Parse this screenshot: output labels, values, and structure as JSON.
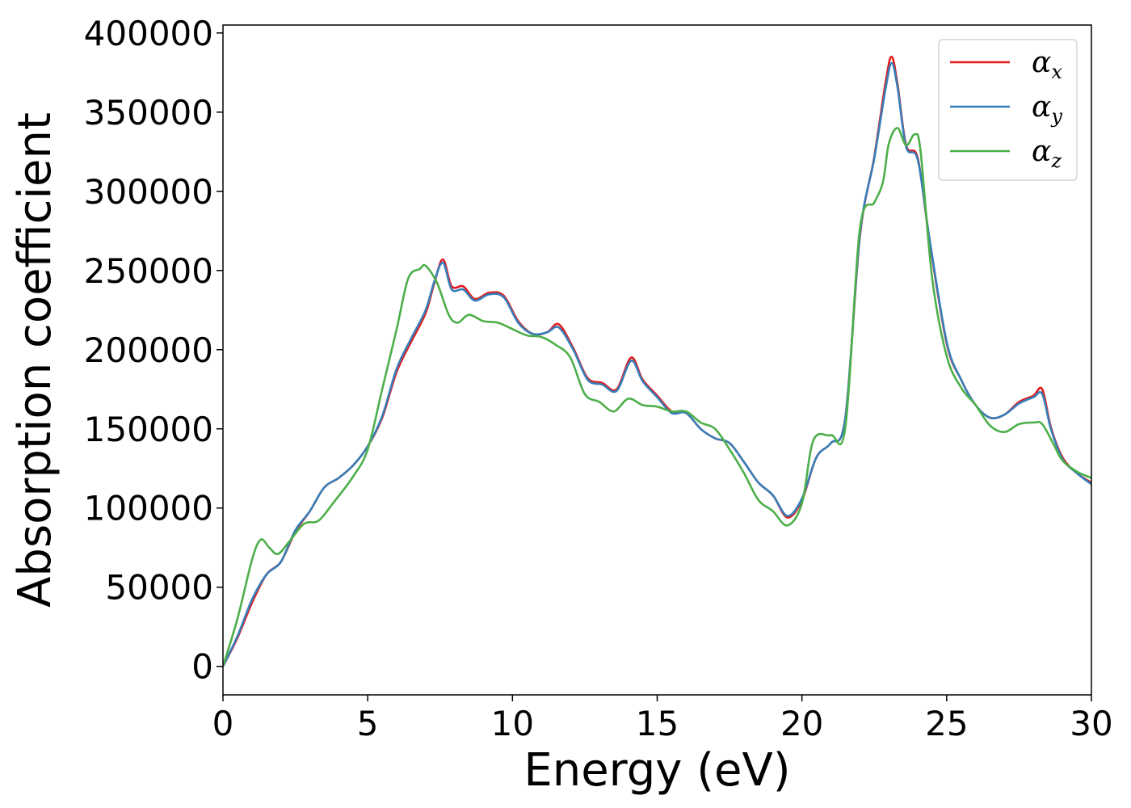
{
  "chart_data": {
    "type": "line",
    "title": "",
    "xlabel": "Energy (eV)",
    "ylabel": "Absorption coefficient",
    "xlim": [
      0,
      30
    ],
    "ylim": [
      -18000,
      405000
    ],
    "xticks": [
      0,
      5,
      10,
      15,
      20,
      25,
      30
    ],
    "xtick_labels": [
      "0",
      "5",
      "10",
      "15",
      "20",
      "25",
      "30"
    ],
    "yticks": [
      0,
      50000,
      100000,
      150000,
      200000,
      250000,
      300000,
      350000,
      400000
    ],
    "ytick_labels": [
      "0",
      "50000",
      "100000",
      "150000",
      "200000",
      "250000",
      "300000",
      "350000",
      "400000"
    ],
    "grid": false,
    "legend_position": "top-right",
    "series": [
      {
        "name": "α_x",
        "legend_base": "α",
        "legend_sub": "x",
        "color": "#e41a1c",
        "points": [
          [
            0,
            0
          ],
          [
            0.5,
            18000
          ],
          [
            1,
            40000
          ],
          [
            1.5,
            58000
          ],
          [
            2,
            66000
          ],
          [
            2.5,
            85000
          ],
          [
            3,
            98000
          ],
          [
            3.5,
            113000
          ],
          [
            4,
            119000
          ],
          [
            4.5,
            127000
          ],
          [
            5,
            139000
          ],
          [
            5.5,
            157000
          ],
          [
            6,
            186000
          ],
          [
            6.5,
            205000
          ],
          [
            7,
            223000
          ],
          [
            7.3,
            242000
          ],
          [
            7.6,
            257000
          ],
          [
            7.9,
            240000
          ],
          [
            8.3,
            240000
          ],
          [
            8.7,
            232000
          ],
          [
            9.2,
            236000
          ],
          [
            9.7,
            234000
          ],
          [
            10.2,
            218000
          ],
          [
            10.7,
            210000
          ],
          [
            11.2,
            211000
          ],
          [
            11.6,
            216000
          ],
          [
            12.1,
            201000
          ],
          [
            12.6,
            182000
          ],
          [
            13.1,
            179000
          ],
          [
            13.6,
            175000
          ],
          [
            14.1,
            195000
          ],
          [
            14.5,
            181000
          ],
          [
            15,
            171000
          ],
          [
            15.5,
            161000
          ],
          [
            16,
            160000
          ],
          [
            16.5,
            150000
          ],
          [
            17,
            144000
          ],
          [
            17.5,
            141000
          ],
          [
            18,
            129000
          ],
          [
            18.5,
            116000
          ],
          [
            19,
            108000
          ],
          [
            19.5,
            94000
          ],
          [
            20,
            105000
          ],
          [
            20.5,
            132000
          ],
          [
            21,
            141000
          ],
          [
            21.5,
            157000
          ],
          [
            22,
            271000
          ],
          [
            22.5,
            322000
          ],
          [
            22.9,
            370000
          ],
          [
            23.1,
            385000
          ],
          [
            23.3,
            368000
          ],
          [
            23.6,
            329000
          ],
          [
            24,
            321000
          ],
          [
            24.4,
            270000
          ],
          [
            25,
            204000
          ],
          [
            25.5,
            181000
          ],
          [
            26,
            165000
          ],
          [
            26.5,
            157000
          ],
          [
            27,
            159000
          ],
          [
            27.5,
            167000
          ],
          [
            28,
            171000
          ],
          [
            28.3,
            175000
          ],
          [
            28.6,
            151000
          ],
          [
            29,
            132000
          ],
          [
            29.5,
            122000
          ],
          [
            30,
            116000
          ]
        ]
      },
      {
        "name": "α_y",
        "legend_base": "α",
        "legend_sub": "y",
        "color": "#377eb8",
        "points": [
          [
            0,
            0
          ],
          [
            0.5,
            19000
          ],
          [
            1,
            42000
          ],
          [
            1.5,
            58000
          ],
          [
            2,
            66000
          ],
          [
            2.5,
            86000
          ],
          [
            3,
            98000
          ],
          [
            3.5,
            113000
          ],
          [
            4,
            119000
          ],
          [
            4.5,
            127000
          ],
          [
            5,
            139000
          ],
          [
            5.5,
            158000
          ],
          [
            6,
            188000
          ],
          [
            6.5,
            207000
          ],
          [
            7,
            225000
          ],
          [
            7.3,
            243000
          ],
          [
            7.6,
            255000
          ],
          [
            7.9,
            238000
          ],
          [
            8.3,
            238000
          ],
          [
            8.7,
            231000
          ],
          [
            9.2,
            235000
          ],
          [
            9.7,
            233000
          ],
          [
            10.2,
            217000
          ],
          [
            10.7,
            210000
          ],
          [
            11.2,
            211000
          ],
          [
            11.6,
            214000
          ],
          [
            12.1,
            200000
          ],
          [
            12.6,
            181000
          ],
          [
            13.1,
            178000
          ],
          [
            13.6,
            174000
          ],
          [
            14.1,
            193000
          ],
          [
            14.5,
            180000
          ],
          [
            15,
            170000
          ],
          [
            15.5,
            160000
          ],
          [
            16,
            160000
          ],
          [
            16.5,
            150000
          ],
          [
            17,
            144000
          ],
          [
            17.5,
            141000
          ],
          [
            18,
            129000
          ],
          [
            18.5,
            116000
          ],
          [
            19,
            108000
          ],
          [
            19.5,
            95000
          ],
          [
            20,
            106000
          ],
          [
            20.5,
            132000
          ],
          [
            21,
            141000
          ],
          [
            21.5,
            157000
          ],
          [
            22,
            272000
          ],
          [
            22.5,
            321000
          ],
          [
            22.9,
            366000
          ],
          [
            23.1,
            381000
          ],
          [
            23.3,
            366000
          ],
          [
            23.6,
            328000
          ],
          [
            24,
            320000
          ],
          [
            24.4,
            271000
          ],
          [
            25,
            205000
          ],
          [
            25.5,
            181000
          ],
          [
            26,
            165000
          ],
          [
            26.5,
            157000
          ],
          [
            27,
            159000
          ],
          [
            27.5,
            166000
          ],
          [
            28,
            170000
          ],
          [
            28.3,
            172000
          ],
          [
            28.6,
            150000
          ],
          [
            29,
            131000
          ],
          [
            29.5,
            122000
          ],
          [
            30,
            115000
          ]
        ]
      },
      {
        "name": "α_z",
        "legend_base": "α",
        "legend_sub": "z",
        "color": "#4daf4a",
        "points": [
          [
            0,
            0
          ],
          [
            0.5,
            30000
          ],
          [
            1,
            67000
          ],
          [
            1.3,
            80000
          ],
          [
            1.6,
            75000
          ],
          [
            1.9,
            71000
          ],
          [
            2.3,
            79000
          ],
          [
            2.8,
            90000
          ],
          [
            3.3,
            92000
          ],
          [
            3.8,
            103000
          ],
          [
            4.5,
            120000
          ],
          [
            5,
            137000
          ],
          [
            5.5,
            175000
          ],
          [
            6,
            213000
          ],
          [
            6.4,
            245000
          ],
          [
            6.8,
            251000
          ],
          [
            7,
            253000
          ],
          [
            7.4,
            242000
          ],
          [
            7.8,
            222000
          ],
          [
            8.1,
            217000
          ],
          [
            8.5,
            222000
          ],
          [
            9,
            218000
          ],
          [
            9.5,
            217000
          ],
          [
            10,
            213000
          ],
          [
            10.5,
            209000
          ],
          [
            11,
            208000
          ],
          [
            11.5,
            203000
          ],
          [
            12,
            195000
          ],
          [
            12.5,
            172000
          ],
          [
            13,
            167000
          ],
          [
            13.5,
            161000
          ],
          [
            14,
            169000
          ],
          [
            14.5,
            165000
          ],
          [
            15,
            164000
          ],
          [
            15.5,
            161000
          ],
          [
            16,
            161000
          ],
          [
            16.5,
            154000
          ],
          [
            17,
            150000
          ],
          [
            17.5,
            137000
          ],
          [
            18,
            122000
          ],
          [
            18.5,
            105000
          ],
          [
            19,
            98000
          ],
          [
            19.5,
            89000
          ],
          [
            20,
            103000
          ],
          [
            20.4,
            143000
          ],
          [
            21,
            146000
          ],
          [
            21.5,
            151000
          ],
          [
            22,
            276000
          ],
          [
            22.5,
            293000
          ],
          [
            22.8,
            306000
          ],
          [
            23,
            330000
          ],
          [
            23.3,
            340000
          ],
          [
            23.6,
            329000
          ],
          [
            23.9,
            336000
          ],
          [
            24.1,
            325000
          ],
          [
            24.5,
            245000
          ],
          [
            25,
            196000
          ],
          [
            25.5,
            176000
          ],
          [
            26,
            165000
          ],
          [
            26.5,
            152000
          ],
          [
            27,
            148000
          ],
          [
            27.5,
            153000
          ],
          [
            28,
            154000
          ],
          [
            28.3,
            153000
          ],
          [
            28.7,
            140000
          ],
          [
            29,
            130000
          ],
          [
            29.5,
            123000
          ],
          [
            30,
            119000
          ]
        ]
      }
    ]
  }
}
